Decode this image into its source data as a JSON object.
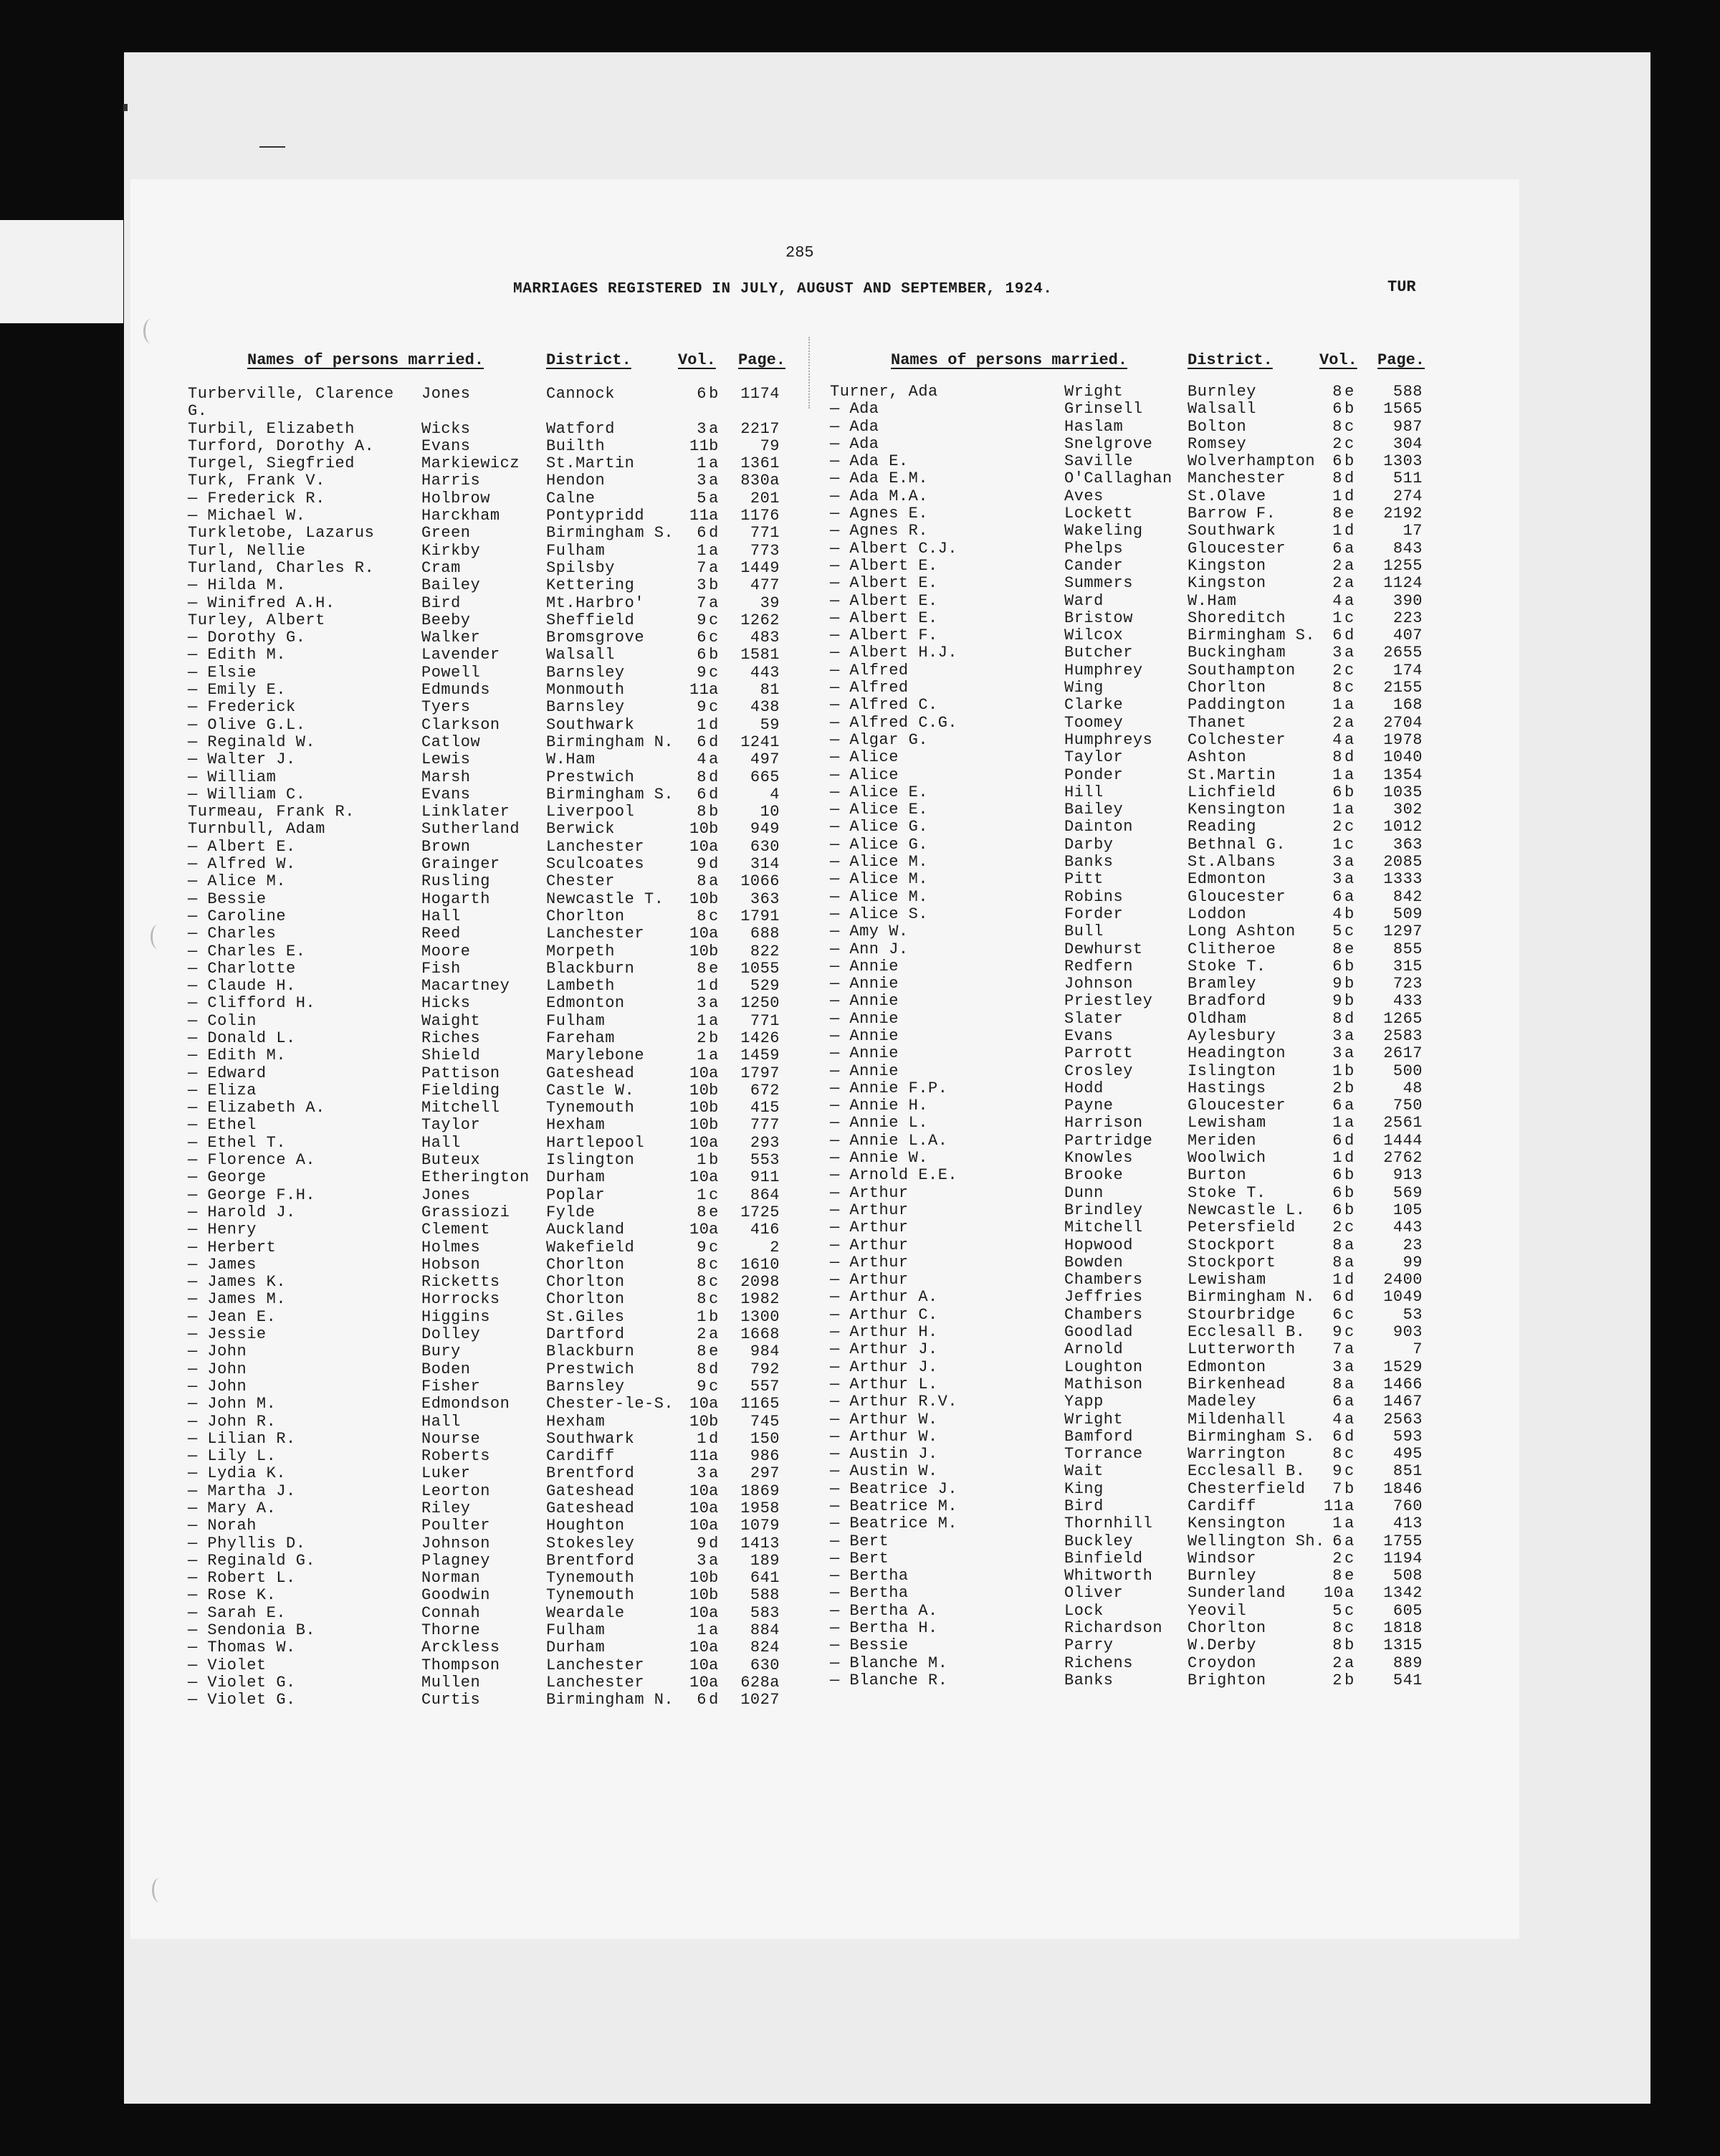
{
  "header": {
    "page_number": "285",
    "title": "MARRIAGES REGISTERED IN JULY, AUGUST AND SEPTEMBER, 1924.",
    "index_letters": "TUR"
  },
  "columns": {
    "names": "Names of persons married.",
    "district": "District.",
    "vol": "Vol.",
    "page": "Page."
  },
  "left": {
    "rows": [
      [
        "Turberville, Clarence G.",
        "Jones",
        "Cannock",
        "6",
        "b",
        "1174"
      ],
      [
        "Turbil, Elizabeth",
        "Wicks",
        "Watford",
        "3",
        "a",
        "2217"
      ],
      [
        "Turford, Dorothy A.",
        "Evans",
        "Builth",
        "11",
        "b",
        "79"
      ],
      [
        "Turgel, Siegfried",
        "Markiewicz",
        "St.Martin",
        "1",
        "a",
        "1361"
      ],
      [
        "Turk, Frank V.",
        "Harris",
        "Hendon",
        "3",
        "a",
        "830a"
      ],
      [
        "— Frederick R.",
        "Holbrow",
        "Calne",
        "5",
        "a",
        "201"
      ],
      [
        "— Michael W.",
        "Harckham",
        "Pontypridd",
        "11",
        "a",
        "1176"
      ],
      [
        "Turkletobe, Lazarus",
        "Green",
        "Birmingham S.",
        "6",
        "d",
        "771"
      ],
      [
        "Turl, Nellie",
        "Kirkby",
        "Fulham",
        "1",
        "a",
        "773"
      ],
      [
        "Turland, Charles R.",
        "Cram",
        "Spilsby",
        "7",
        "a",
        "1449"
      ],
      [
        "— Hilda M.",
        "Bailey",
        "Kettering",
        "3",
        "b",
        "477"
      ],
      [
        "— Winifred A.H.",
        "Bird",
        "Mt.Harbro'",
        "7",
        "a",
        "39"
      ],
      [
        "Turley, Albert",
        "Beeby",
        "Sheffield",
        "9",
        "c",
        "1262"
      ],
      [
        "— Dorothy G.",
        "Walker",
        "Bromsgrove",
        "6",
        "c",
        "483"
      ],
      [
        "— Edith M.",
        "Lavender",
        "Walsall",
        "6",
        "b",
        "1581"
      ],
      [
        "— Elsie",
        "Powell",
        "Barnsley",
        "9",
        "c",
        "443"
      ],
      [
        "— Emily E.",
        "Edmunds",
        "Monmouth",
        "11",
        "a",
        "81"
      ],
      [
        "— Frederick",
        "Tyers",
        "Barnsley",
        "9",
        "c",
        "438"
      ],
      [
        "— Olive G.L.",
        "Clarkson",
        "Southwark",
        "1",
        "d",
        "59"
      ],
      [
        "— Reginald W.",
        "Catlow",
        "Birmingham N.",
        "6",
        "d",
        "1241"
      ],
      [
        "— Walter J.",
        "Lewis",
        "W.Ham",
        "4",
        "a",
        "497"
      ],
      [
        "— William",
        "Marsh",
        "Prestwich",
        "8",
        "d",
        "665"
      ],
      [
        "— William C.",
        "Evans",
        "Birmingham S.",
        "6",
        "d",
        "4"
      ],
      [
        "Turmeau, Frank R.",
        "Linklater",
        "Liverpool",
        "8",
        "b",
        "10"
      ],
      [
        "Turnbull, Adam",
        "Sutherland",
        "Berwick",
        "10",
        "b",
        "949"
      ],
      [
        "— Albert E.",
        "Brown",
        "Lanchester",
        "10",
        "a",
        "630"
      ],
      [
        "— Alfred W.",
        "Grainger",
        "Sculcoates",
        "9",
        "d",
        "314"
      ],
      [
        "— Alice M.",
        "Rusling",
        "Chester",
        "8",
        "a",
        "1066"
      ],
      [
        "— Bessie",
        "Hogarth",
        "Newcastle T.",
        "10",
        "b",
        "363"
      ],
      [
        "— Caroline",
        "Hall",
        "Chorlton",
        "8",
        "c",
        "1791"
      ],
      [
        "— Charles",
        "Reed",
        "Lanchester",
        "10",
        "a",
        "688"
      ],
      [
        "— Charles E.",
        "Moore",
        "Morpeth",
        "10",
        "b",
        "822"
      ],
      [
        "— Charlotte",
        "Fish",
        "Blackburn",
        "8",
        "e",
        "1055"
      ],
      [
        "— Claude H.",
        "Macartney",
        "Lambeth",
        "1",
        "d",
        "529"
      ],
      [
        "— Clifford H.",
        "Hicks",
        "Edmonton",
        "3",
        "a",
        "1250"
      ],
      [
        "— Colin",
        "Waight",
        "Fulham",
        "1",
        "a",
        "771"
      ],
      [
        "— Donald L.",
        "Riches",
        "Fareham",
        "2",
        "b",
        "1426"
      ],
      [
        "— Edith M.",
        "Shield",
        "Marylebone",
        "1",
        "a",
        "1459"
      ],
      [
        "— Edward",
        "Pattison",
        "Gateshead",
        "10",
        "a",
        "1797"
      ],
      [
        "— Eliza",
        "Fielding",
        "Castle W.",
        "10",
        "b",
        "672"
      ],
      [
        "— Elizabeth A.",
        "Mitchell",
        "Tynemouth",
        "10",
        "b",
        "415"
      ],
      [
        "— Ethel",
        "Taylor",
        "Hexham",
        "10",
        "b",
        "777"
      ],
      [
        "— Ethel T.",
        "Hall",
        "Hartlepool",
        "10",
        "a",
        "293"
      ],
      [
        "— Florence A.",
        "Buteux",
        "Islington",
        "1",
        "b",
        "553"
      ],
      [
        "— George",
        "Etherington",
        "Durham",
        "10",
        "a",
        "911"
      ],
      [
        "— George F.H.",
        "Jones",
        "Poplar",
        "1",
        "c",
        "864"
      ],
      [
        "— Harold J.",
        "Grassiozi",
        "Fylde",
        "8",
        "e",
        "1725"
      ],
      [
        "— Henry",
        "Clement",
        "Auckland",
        "10",
        "a",
        "416"
      ],
      [
        "— Herbert",
        "Holmes",
        "Wakefield",
        "9",
        "c",
        "2"
      ],
      [
        "— James",
        "Hobson",
        "Chorlton",
        "8",
        "c",
        "1610"
      ],
      [
        "— James K.",
        "Ricketts",
        "Chorlton",
        "8",
        "c",
        "2098"
      ],
      [
        "— James M.",
        "Horrocks",
        "Chorlton",
        "8",
        "c",
        "1982"
      ],
      [
        "— Jean E.",
        "Higgins",
        "St.Giles",
        "1",
        "b",
        "1300"
      ],
      [
        "— Jessie",
        "Dolley",
        "Dartford",
        "2",
        "a",
        "1668"
      ],
      [
        "— John",
        "Bury",
        "Blackburn",
        "8",
        "e",
        "984"
      ],
      [
        "— John",
        "Boden",
        "Prestwich",
        "8",
        "d",
        "792"
      ],
      [
        "— John",
        "Fisher",
        "Barnsley",
        "9",
        "c",
        "557"
      ],
      [
        "— John M.",
        "Edmondson",
        "Chester-le-S.",
        "10",
        "a",
        "1165"
      ],
      [
        "— John R.",
        "Hall",
        "Hexham",
        "10",
        "b",
        "745"
      ],
      [
        "— Lilian R.",
        "Nourse",
        "Southwark",
        "1",
        "d",
        "150"
      ],
      [
        "— Lily L.",
        "Roberts",
        "Cardiff",
        "11",
        "a",
        "986"
      ],
      [
        "— Lydia K.",
        "Luker",
        "Brentford",
        "3",
        "a",
        "297"
      ],
      [
        "— Martha J.",
        "Leorton",
        "Gateshead",
        "10",
        "a",
        "1869"
      ],
      [
        "— Mary A.",
        "Riley",
        "Gateshead",
        "10",
        "a",
        "1958"
      ],
      [
        "— Norah",
        "Poulter",
        "Houghton",
        "10",
        "a",
        "1079"
      ],
      [
        "— Phyllis D.",
        "Johnson",
        "Stokesley",
        "9",
        "d",
        "1413"
      ],
      [
        "— Reginald G.",
        "Plagney",
        "Brentford",
        "3",
        "a",
        "189"
      ],
      [
        "— Robert L.",
        "Norman",
        "Tynemouth",
        "10",
        "b",
        "641"
      ],
      [
        "— Rose K.",
        "Goodwin",
        "Tynemouth",
        "10",
        "b",
        "588"
      ],
      [
        "— Sarah E.",
        "Connah",
        "Weardale",
        "10",
        "a",
        "583"
      ],
      [
        "— Sendonia B.",
        "Thorne",
        "Fulham",
        "1",
        "a",
        "884"
      ],
      [
        "— Thomas W.",
        "Arckless",
        "Durham",
        "10",
        "a",
        "824"
      ],
      [
        "— Violet",
        "Thompson",
        "Lanchester",
        "10",
        "a",
        "630"
      ],
      [
        "— Violet G.",
        "Mullen",
        "Lanchester",
        "10",
        "a",
        "628a"
      ],
      [
        "— Violet G.",
        "Curtis",
        "Birmingham N.",
        "6",
        "d",
        "1027"
      ]
    ]
  },
  "right": {
    "rows": [
      [
        "Turner, Ada",
        "Wright",
        "Burnley",
        "8",
        "e",
        "588"
      ],
      [
        "— Ada",
        "Grinsell",
        "Walsall",
        "6",
        "b",
        "1565"
      ],
      [
        "— Ada",
        "Haslam",
        "Bolton",
        "8",
        "c",
        "987"
      ],
      [
        "— Ada",
        "Snelgrove",
        "Romsey",
        "2",
        "c",
        "304"
      ],
      [
        "— Ada E.",
        "Saville",
        "Wolverhampton",
        "6",
        "b",
        "1303"
      ],
      [
        "— Ada E.M.",
        "O'Callaghan",
        "Manchester",
        "8",
        "d",
        "511"
      ],
      [
        "— Ada M.A.",
        "Aves",
        "St.Olave",
        "1",
        "d",
        "274"
      ],
      [
        "— Agnes E.",
        "Lockett",
        "Barrow F.",
        "8",
        "e",
        "2192"
      ],
      [
        "— Agnes R.",
        "Wakeling",
        "Southwark",
        "1",
        "d",
        "17"
      ],
      [
        "— Albert C.J.",
        "Phelps",
        "Gloucester",
        "6",
        "a",
        "843"
      ],
      [
        "— Albert E.",
        "Cander",
        "Kingston",
        "2",
        "a",
        "1255"
      ],
      [
        "— Albert E.",
        "Summers",
        "Kingston",
        "2",
        "a",
        "1124"
      ],
      [
        "— Albert E.",
        "Ward",
        "W.Ham",
        "4",
        "a",
        "390"
      ],
      [
        "— Albert E.",
        "Bristow",
        "Shoreditch",
        "1",
        "c",
        "223"
      ],
      [
        "— Albert F.",
        "Wilcox",
        "Birmingham S.",
        "6",
        "d",
        "407"
      ],
      [
        "— Albert H.J.",
        "Butcher",
        "Buckingham",
        "3",
        "a",
        "2655"
      ],
      [
        "— Alfred",
        "Humphrey",
        "Southampton",
        "2",
        "c",
        "174"
      ],
      [
        "— Alfred",
        "Wing",
        "Chorlton",
        "8",
        "c",
        "2155"
      ],
      [
        "— Alfred C.",
        "Clarke",
        "Paddington",
        "1",
        "a",
        "168"
      ],
      [
        "— Alfred C.G.",
        "Toomey",
        "Thanet",
        "2",
        "a",
        "2704"
      ],
      [
        "— Algar G.",
        "Humphreys",
        "Colchester",
        "4",
        "a",
        "1978"
      ],
      [
        "— Alice",
        "Taylor",
        "Ashton",
        "8",
        "d",
        "1040"
      ],
      [
        "— Alice",
        "Ponder",
        "St.Martin",
        "1",
        "a",
        "1354"
      ],
      [
        "— Alice E.",
        "Hill",
        "Lichfield",
        "6",
        "b",
        "1035"
      ],
      [
        "— Alice E.",
        "Bailey",
        "Kensington",
        "1",
        "a",
        "302"
      ],
      [
        "— Alice G.",
        "Dainton",
        "Reading",
        "2",
        "c",
        "1012"
      ],
      [
        "— Alice G.",
        "Darby",
        "Bethnal G.",
        "1",
        "c",
        "363"
      ],
      [
        "— Alice M.",
        "Banks",
        "St.Albans",
        "3",
        "a",
        "2085"
      ],
      [
        "— Alice M.",
        "Pitt",
        "Edmonton",
        "3",
        "a",
        "1333"
      ],
      [
        "— Alice M.",
        "Robins",
        "Gloucester",
        "6",
        "a",
        "842"
      ],
      [
        "— Alice S.",
        "Forder",
        "Loddon",
        "4",
        "b",
        "509"
      ],
      [
        "— Amy W.",
        "Bull",
        "Long Ashton",
        "5",
        "c",
        "1297"
      ],
      [
        "— Ann J.",
        "Dewhurst",
        "Clitheroe",
        "8",
        "e",
        "855"
      ],
      [
        "— Annie",
        "Redfern",
        "Stoke T.",
        "6",
        "b",
        "315"
      ],
      [
        "— Annie",
        "Johnson",
        "Bramley",
        "9",
        "b",
        "723"
      ],
      [
        "— Annie",
        "Priestley",
        "Bradford",
        "9",
        "b",
        "433"
      ],
      [
        "— Annie",
        "Slater",
        "Oldham",
        "8",
        "d",
        "1265"
      ],
      [
        "— Annie",
        "Evans",
        "Aylesbury",
        "3",
        "a",
        "2583"
      ],
      [
        "— Annie",
        "Parrott",
        "Headington",
        "3",
        "a",
        "2617"
      ],
      [
        "— Annie",
        "Crosley",
        "Islington",
        "1",
        "b",
        "500"
      ],
      [
        "— Annie F.P.",
        "Hodd",
        "Hastings",
        "2",
        "b",
        "48"
      ],
      [
        "— Annie H.",
        "Payne",
        "Gloucester",
        "6",
        "a",
        "750"
      ],
      [
        "— Annie L.",
        "Harrison",
        "Lewisham",
        "1",
        "a",
        "2561"
      ],
      [
        "— Annie L.A.",
        "Partridge",
        "Meriden",
        "6",
        "d",
        "1444"
      ],
      [
        "— Annie W.",
        "Knowles",
        "Woolwich",
        "1",
        "d",
        "2762"
      ],
      [
        "— Arnold E.E.",
        "Brooke",
        "Burton",
        "6",
        "b",
        "913"
      ],
      [
        "— Arthur",
        "Dunn",
        "Stoke T.",
        "6",
        "b",
        "569"
      ],
      [
        "— Arthur",
        "Brindley",
        "Newcastle L.",
        "6",
        "b",
        "105"
      ],
      [
        "— Arthur",
        "Mitchell",
        "Petersfield",
        "2",
        "c",
        "443"
      ],
      [
        "— Arthur",
        "Hopwood",
        "Stockport",
        "8",
        "a",
        "23"
      ],
      [
        "— Arthur",
        "Bowden",
        "Stockport",
        "8",
        "a",
        "99"
      ],
      [
        "— Arthur",
        "Chambers",
        "Lewisham",
        "1",
        "d",
        "2400"
      ],
      [
        "— Arthur A.",
        "Jeffries",
        "Birmingham N.",
        "6",
        "d",
        "1049"
      ],
      [
        "— Arthur C.",
        "Chambers",
        "Stourbridge",
        "6",
        "c",
        "53"
      ],
      [
        "— Arthur H.",
        "Goodlad",
        "Ecclesall B.",
        "9",
        "c",
        "903"
      ],
      [
        "— Arthur J.",
        "Arnold",
        "Lutterworth",
        "7",
        "a",
        "7"
      ],
      [
        "— Arthur J.",
        "Loughton",
        "Edmonton",
        "3",
        "a",
        "1529"
      ],
      [
        "— Arthur L.",
        "Mathison",
        "Birkenhead",
        "8",
        "a",
        "1466"
      ],
      [
        "— Arthur R.V.",
        "Yapp",
        "Madeley",
        "6",
        "a",
        "1467"
      ],
      [
        "— Arthur W.",
        "Wright",
        "Mildenhall",
        "4",
        "a",
        "2563"
      ],
      [
        "— Arthur W.",
        "Bamford",
        "Birmingham S.",
        "6",
        "d",
        "593"
      ],
      [
        "— Austin J.",
        "Torrance",
        "Warrington",
        "8",
        "c",
        "495"
      ],
      [
        "— Austin W.",
        "Wait",
        "Ecclesall B.",
        "9",
        "c",
        "851"
      ],
      [
        "— Beatrice J.",
        "King",
        "Chesterfield",
        "7",
        "b",
        "1846"
      ],
      [
        "— Beatrice M.",
        "Bird",
        "Cardiff",
        "11",
        "a",
        "760"
      ],
      [
        "— Beatrice M.",
        "Thornhill",
        "Kensington",
        "1",
        "a",
        "413"
      ],
      [
        "— Bert",
        "Buckley",
        "Wellington Sh.",
        "6",
        "a",
        "1755"
      ],
      [
        "— Bert",
        "Binfield",
        "Windsor",
        "2",
        "c",
        "1194"
      ],
      [
        "— Bertha",
        "Whitworth",
        "Burnley",
        "8",
        "e",
        "508"
      ],
      [
        "— Bertha",
        "Oliver",
        "Sunderland",
        "10",
        "a",
        "1342"
      ],
      [
        "— Bertha A.",
        "Lock",
        "Yeovil",
        "5",
        "c",
        "605"
      ],
      [
        "— Bertha H.",
        "Richardson",
        "Chorlton",
        "8",
        "c",
        "1818"
      ],
      [
        "— Bessie",
        "Parry",
        "W.Derby",
        "8",
        "b",
        "1315"
      ],
      [
        "— Blanche M.",
        "Richens",
        "Croydon",
        "2",
        "a",
        "889"
      ],
      [
        "— Blanche R.",
        "Banks",
        "Brighton",
        "2",
        "b",
        "541"
      ]
    ]
  }
}
